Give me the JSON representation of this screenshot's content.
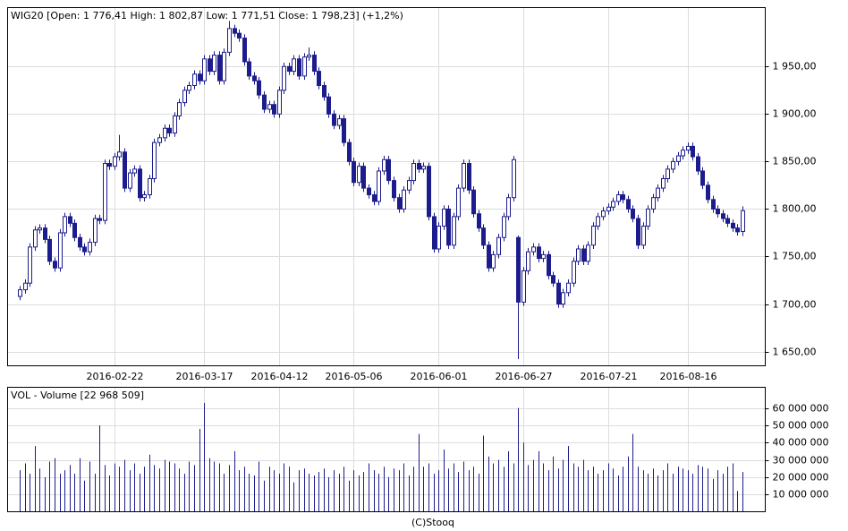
{
  "chart_data": [
    {
      "type": "candlestick",
      "title": "WIG20 [Open: 1 776,41  High: 1 802,87  Low: 1 771,51  Close: 1 798,23] (+1,2%)",
      "color": "#1c1c8c",
      "categories": [
        null,
        null,
        null,
        null,
        null,
        null,
        null,
        null,
        null,
        null,
        null,
        null,
        null,
        null,
        null,
        null,
        null,
        null,
        null,
        "2016-02-22",
        null,
        null,
        null,
        null,
        null,
        null,
        null,
        null,
        null,
        null,
        null,
        null,
        null,
        null,
        null,
        null,
        null,
        "2016-03-17",
        null,
        null,
        null,
        null,
        null,
        null,
        null,
        null,
        null,
        null,
        null,
        null,
        null,
        null,
        "2016-04-12",
        null,
        null,
        null,
        null,
        null,
        null,
        null,
        null,
        null,
        null,
        null,
        null,
        null,
        null,
        "2016-05-06",
        null,
        null,
        null,
        null,
        null,
        null,
        null,
        null,
        null,
        null,
        null,
        null,
        null,
        null,
        null,
        null,
        "2016-06-01",
        null,
        null,
        null,
        null,
        null,
        null,
        null,
        null,
        null,
        null,
        null,
        null,
        null,
        null,
        null,
        null,
        "2016-06-27",
        null,
        null,
        null,
        null,
        null,
        null,
        null,
        null,
        null,
        null,
        null,
        null,
        null,
        null,
        null,
        null,
        "2016-07-21",
        null,
        null,
        null,
        null,
        null,
        null,
        null,
        null,
        null,
        null,
        null,
        null,
        null,
        null,
        null,
        "2016-08-16",
        null,
        null,
        null,
        null,
        null,
        null,
        null,
        null,
        null,
        null,
        null
      ],
      "open": [
        1708,
        1715,
        1722,
        1760,
        1778,
        1780,
        1768,
        1745,
        1738,
        1775,
        1792,
        1785,
        1770,
        1760,
        1755,
        1765,
        1790,
        1788,
        1848,
        1845,
        1855,
        1860,
        1822,
        1838,
        1842,
        1812,
        1815,
        1832,
        1870,
        1875,
        1885,
        1880,
        1898,
        1912,
        1925,
        1930,
        1942,
        1935,
        1958,
        1945,
        1962,
        1935,
        1965,
        1990,
        1985,
        1980,
        1955,
        1940,
        1935,
        1920,
        1905,
        1910,
        1900,
        1925,
        1950,
        1945,
        1958,
        1940,
        1960,
        1962,
        1945,
        1930,
        1918,
        1900,
        1888,
        1895,
        1870,
        1850,
        1828,
        1845,
        1822,
        1815,
        1808,
        1840,
        1852,
        1830,
        1812,
        1800,
        1820,
        1830,
        1848,
        1842,
        1845,
        1792,
        1758,
        1782,
        1800,
        1762,
        1792,
        1822,
        1848,
        1820,
        1795,
        1780,
        1762,
        1738,
        1752,
        1770,
        1792,
        1812,
        1770,
        1702,
        1735,
        1755,
        1760,
        1748,
        1752,
        1730,
        1722,
        1700,
        1712,
        1722,
        1745,
        1758,
        1745,
        1762,
        1782,
        1792,
        1798,
        1802,
        1808,
        1815,
        1810,
        1800,
        1790,
        1762,
        1782,
        1800,
        1812,
        1822,
        1832,
        1842,
        1850,
        1856,
        1862,
        1866,
        1855,
        1840,
        1825,
        1810,
        1800,
        1795,
        1790,
        1785,
        1780,
        1776.41
      ],
      "high": [
        1719,
        1726,
        1764,
        1782,
        1784,
        1784,
        1772,
        1749,
        1779,
        1796,
        1796,
        1789,
        1774,
        1764,
        1769,
        1794,
        1794,
        1852,
        1852,
        1859,
        1878,
        1864,
        1842,
        1846,
        1846,
        1819,
        1836,
        1874,
        1879,
        1889,
        1889,
        1902,
        1916,
        1929,
        1934,
        1946,
        1946,
        1962,
        1962,
        1966,
        1966,
        1969,
        1998,
        1994,
        1989,
        1984,
        1959,
        1944,
        1939,
        1924,
        1914,
        1914,
        1929,
        1954,
        1954,
        1962,
        1962,
        1964,
        1970,
        1966,
        1949,
        1934,
        1922,
        1904,
        1899,
        1899,
        1874,
        1854,
        1849,
        1849,
        1826,
        1819,
        1844,
        1856,
        1856,
        1834,
        1816,
        1824,
        1834,
        1852,
        1852,
        1849,
        1849,
        1796,
        1786,
        1804,
        1804,
        1796,
        1826,
        1852,
        1852,
        1824,
        1799,
        1784,
        1766,
        1756,
        1774,
        1796,
        1816,
        1856,
        1772,
        1739,
        1759,
        1764,
        1764,
        1756,
        1756,
        1734,
        1726,
        1716,
        1726,
        1749,
        1762,
        1762,
        1766,
        1786,
        1796,
        1802,
        1806,
        1812,
        1819,
        1819,
        1814,
        1804,
        1794,
        1786,
        1804,
        1816,
        1826,
        1836,
        1846,
        1854,
        1860,
        1866,
        1870,
        1870,
        1859,
        1844,
        1829,
        1814,
        1804,
        1799,
        1794,
        1789,
        1784,
        1802.87
      ],
      "low": [
        1704,
        1711,
        1718,
        1756,
        1774,
        1764,
        1741,
        1734,
        1734,
        1771,
        1781,
        1766,
        1756,
        1751,
        1751,
        1761,
        1784,
        1784,
        1841,
        1841,
        1851,
        1818,
        1818,
        1834,
        1808,
        1808,
        1811,
        1828,
        1866,
        1871,
        1876,
        1876,
        1894,
        1908,
        1921,
        1926,
        1931,
        1931,
        1941,
        1941,
        1931,
        1931,
        1961,
        1981,
        1976,
        1951,
        1936,
        1931,
        1916,
        1901,
        1901,
        1896,
        1896,
        1921,
        1941,
        1941,
        1936,
        1936,
        1956,
        1941,
        1926,
        1914,
        1896,
        1884,
        1884,
        1866,
        1846,
        1824,
        1824,
        1818,
        1811,
        1804,
        1804,
        1836,
        1826,
        1808,
        1796,
        1796,
        1816,
        1826,
        1838,
        1838,
        1788,
        1754,
        1754,
        1778,
        1758,
        1758,
        1788,
        1818,
        1816,
        1791,
        1776,
        1758,
        1734,
        1734,
        1748,
        1766,
        1788,
        1808,
        1642,
        1698,
        1731,
        1751,
        1744,
        1744,
        1726,
        1718,
        1696,
        1696,
        1708,
        1718,
        1741,
        1741,
        1741,
        1758,
        1778,
        1788,
        1794,
        1798,
        1804,
        1806,
        1796,
        1786,
        1758,
        1758,
        1778,
        1796,
        1808,
        1818,
        1828,
        1838,
        1846,
        1852,
        1858,
        1851,
        1836,
        1821,
        1806,
        1796,
        1791,
        1786,
        1781,
        1776,
        1772,
        1771.51
      ],
      "close": [
        1715,
        1722,
        1760,
        1778,
        1780,
        1768,
        1745,
        1738,
        1775,
        1792,
        1785,
        1770,
        1760,
        1755,
        1765,
        1790,
        1788,
        1848,
        1845,
        1855,
        1860,
        1822,
        1838,
        1842,
        1812,
        1815,
        1832,
        1870,
        1875,
        1885,
        1880,
        1898,
        1912,
        1925,
        1930,
        1942,
        1935,
        1958,
        1945,
        1962,
        1935,
        1965,
        1990,
        1985,
        1980,
        1955,
        1940,
        1935,
        1920,
        1905,
        1910,
        1900,
        1925,
        1950,
        1945,
        1958,
        1940,
        1960,
        1962,
        1945,
        1930,
        1918,
        1900,
        1888,
        1895,
        1870,
        1850,
        1828,
        1845,
        1822,
        1815,
        1808,
        1840,
        1852,
        1830,
        1812,
        1800,
        1820,
        1830,
        1848,
        1842,
        1845,
        1792,
        1758,
        1782,
        1800,
        1762,
        1792,
        1822,
        1848,
        1820,
        1795,
        1780,
        1762,
        1738,
        1752,
        1770,
        1792,
        1812,
        1852,
        1702,
        1735,
        1755,
        1760,
        1748,
        1752,
        1730,
        1722,
        1700,
        1712,
        1722,
        1745,
        1758,
        1745,
        1762,
        1782,
        1792,
        1798,
        1802,
        1808,
        1815,
        1810,
        1800,
        1790,
        1762,
        1782,
        1800,
        1812,
        1822,
        1832,
        1842,
        1850,
        1856,
        1862,
        1866,
        1855,
        1840,
        1825,
        1810,
        1800,
        1795,
        1790,
        1785,
        1780,
        1776,
        1798.23
      ],
      "ylim": [
        1635,
        2012
      ],
      "yticks": [
        {
          "value": 1650,
          "label": "1 650,00"
        },
        {
          "value": 1700,
          "label": "1 700,00"
        },
        {
          "value": 1750,
          "label": "1 750,00"
        },
        {
          "value": 1800,
          "label": "1 800,00"
        },
        {
          "value": 1850,
          "label": "1 850,00"
        },
        {
          "value": 1900,
          "label": "1 900,00"
        },
        {
          "value": 1950,
          "label": "1 950,00"
        }
      ],
      "grid": true
    },
    {
      "type": "bar",
      "title": "VOL - Volume [22 968 509]",
      "color": "#1c1c8c",
      "values": [
        24000000,
        28000000,
        22000000,
        38000000,
        25000000,
        20000000,
        29000000,
        31000000,
        22000000,
        24000000,
        27000000,
        22000000,
        31000000,
        18000000,
        29000000,
        22000000,
        50000000,
        27000000,
        21000000,
        28000000,
        26000000,
        30000000,
        24000000,
        28000000,
        22000000,
        26000000,
        33000000,
        27000000,
        25000000,
        30000000,
        29000000,
        28000000,
        25000000,
        22000000,
        29000000,
        27000000,
        48000000,
        63000000,
        31000000,
        29000000,
        28000000,
        22000000,
        27000000,
        35000000,
        24000000,
        26000000,
        22000000,
        21000000,
        29000000,
        18000000,
        26000000,
        24000000,
        22000000,
        28000000,
        26000000,
        17000000,
        24000000,
        25000000,
        22000000,
        21000000,
        23000000,
        25000000,
        20000000,
        24000000,
        22000000,
        26000000,
        18000000,
        24000000,
        21000000,
        23000000,
        28000000,
        24000000,
        22000000,
        26000000,
        20000000,
        25000000,
        24000000,
        28000000,
        21000000,
        26000000,
        45000000,
        26000000,
        28000000,
        22000000,
        24000000,
        36000000,
        25000000,
        28000000,
        23000000,
        29000000,
        24000000,
        26000000,
        22000000,
        44000000,
        32000000,
        28000000,
        30000000,
        26000000,
        35000000,
        28000000,
        60000000,
        40000000,
        27000000,
        30000000,
        35000000,
        28000000,
        24000000,
        32000000,
        25000000,
        30000000,
        38000000,
        28000000,
        26000000,
        30000000,
        24000000,
        26000000,
        22000000,
        24000000,
        28000000,
        25000000,
        21000000,
        26000000,
        32000000,
        45000000,
        26000000,
        24000000,
        22000000,
        25000000,
        21000000,
        24000000,
        28000000,
        22000000,
        26000000,
        25000000,
        24000000,
        22000000,
        27000000,
        26000000,
        25000000,
        19000000,
        24000000,
        22000000,
        26000000,
        28000000,
        12000000,
        22968509
      ],
      "ylim": [
        0,
        72000000
      ],
      "yticks": [
        {
          "value": 10000000,
          "label": "10 000 000"
        },
        {
          "value": 20000000,
          "label": "20 000 000"
        },
        {
          "value": 30000000,
          "label": "30 000 000"
        },
        {
          "value": 40000000,
          "label": "40 000 000"
        },
        {
          "value": 50000000,
          "label": "50 000 000"
        },
        {
          "value": 60000000,
          "label": "60 000 000"
        }
      ],
      "grid": true
    }
  ],
  "footer": "(C)Stooq"
}
